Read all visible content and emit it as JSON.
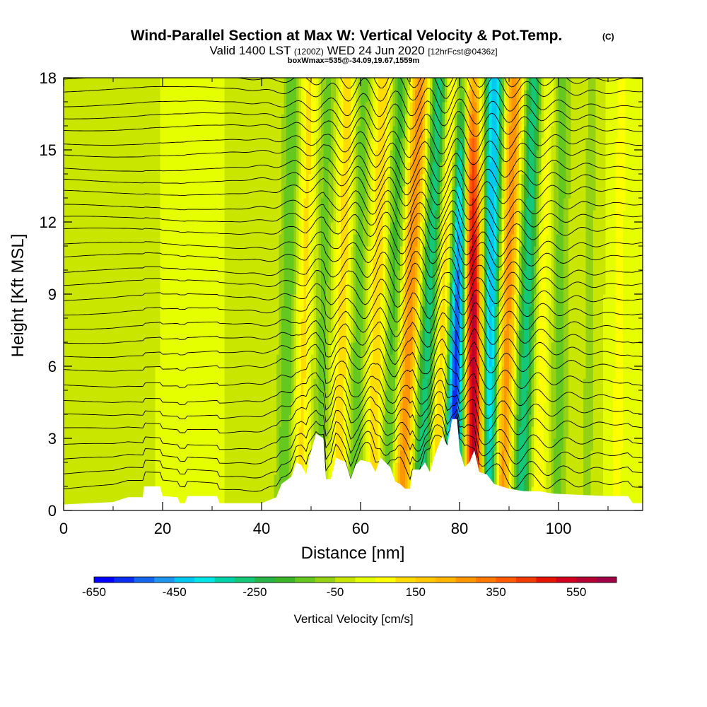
{
  "chart_data": {
    "type": "heatmap",
    "title": "Wind-Parallel Section at Max W: Vertical Velocity & Pot.Temp.",
    "title_mark": "(C)",
    "subtitle": {
      "valid_prefix": "Valid 1400 LST",
      "utc": "(1200Z)",
      "date": "WED 24 Jun 2020",
      "forecast": "[12hrFcst@0436z]"
    },
    "box_info": "boxWmax=535@-34.09,19.67,1559m",
    "xlabel": "Distance [nm]",
    "ylabel": "Height [Kft MSL]",
    "xlim": [
      0,
      117
    ],
    "ylim": [
      0,
      18
    ],
    "x_ticks": [
      "0",
      "20",
      "40",
      "60",
      "80",
      "100"
    ],
    "x_tick_values": [
      0,
      20,
      40,
      60,
      80,
      100
    ],
    "y_ticks": [
      "0",
      "3",
      "6",
      "9",
      "12",
      "15",
      "18"
    ],
    "y_tick_values": [
      0,
      3,
      6,
      9,
      12,
      15,
      18
    ],
    "colorbar": {
      "label": "Vertical Velocity [cm/s]",
      "range": [
        -650,
        650
      ],
      "tick_labels": [
        "-650",
        "-450",
        "-250",
        "-50",
        "150",
        "350",
        "550"
      ],
      "tick_values": [
        -650,
        -450,
        -250,
        -50,
        150,
        350,
        550
      ],
      "colors": [
        "#0000ff",
        "#0a2ef0",
        "#1466ee",
        "#1e96f0",
        "#00c8f0",
        "#00e6e6",
        "#00d2aa",
        "#14c878",
        "#28b446",
        "#3cb428",
        "#64c81e",
        "#96d214",
        "#c8e600",
        "#e6ff00",
        "#ffff00",
        "#ffdc00",
        "#ffc800",
        "#ffb400",
        "#ff9600",
        "#ff7800",
        "#ff5a00",
        "#f03c00",
        "#e61400",
        "#d2001e",
        "#b40032",
        "#a00046"
      ]
    },
    "wave_bands": [
      {
        "x": 45,
        "w": -150,
        "tilt": 0.1
      },
      {
        "x": 48,
        "w": 120,
        "tilt": 0.12
      },
      {
        "x": 52,
        "w": -120,
        "tilt": 0.1
      },
      {
        "x": 56,
        "w": 140,
        "tilt": 0.12
      },
      {
        "x": 59,
        "w": -140,
        "tilt": 0.1
      },
      {
        "x": 63,
        "w": 150,
        "tilt": 0.12
      },
      {
        "x": 66,
        "w": -180,
        "tilt": 0.15
      },
      {
        "x": 69,
        "w": 300,
        "tilt": 0.22
      },
      {
        "x": 73,
        "w": -300,
        "tilt": 0.22
      },
      {
        "x": 76,
        "w": 220,
        "tilt": 0.2
      },
      {
        "x": 79,
        "w": -620,
        "tilt": 0.15
      },
      {
        "x": 83,
        "w": 620,
        "tilt": -0.08
      },
      {
        "x": 86,
        "w": -450,
        "tilt": 0.08
      },
      {
        "x": 89,
        "w": 300,
        "tilt": 0.15
      },
      {
        "x": 93,
        "w": -300,
        "tilt": 0.15
      },
      {
        "x": 96,
        "w": 100,
        "tilt": 0.1
      },
      {
        "x": 100,
        "w": -120,
        "tilt": 0.05
      },
      {
        "x": 106,
        "w": -60,
        "tilt": 0.05
      },
      {
        "x": 112,
        "w": 60,
        "tilt": 0.05
      }
    ],
    "terrain_profile": [
      [
        0,
        0.25
      ],
      [
        10,
        0.35
      ],
      [
        13,
        0.55
      ],
      [
        16,
        0.55
      ],
      [
        16.2,
        1.0
      ],
      [
        19.5,
        1.0
      ],
      [
        20,
        0.6
      ],
      [
        23,
        0.55
      ],
      [
        23.5,
        0.3
      ],
      [
        24.5,
        0.3
      ],
      [
        25,
        0.6
      ],
      [
        31,
        0.6
      ],
      [
        31.5,
        0.3
      ],
      [
        40,
        0.3
      ],
      [
        43,
        0.55
      ],
      [
        44,
        1.1
      ],
      [
        46,
        1.4
      ],
      [
        47,
        2.0
      ],
      [
        48,
        1.9
      ],
      [
        49,
        1.5
      ],
      [
        49.5,
        2.1
      ],
      [
        51,
        3.2
      ],
      [
        52.5,
        3.0
      ],
      [
        53,
        1.3
      ],
      [
        54,
        1.3
      ],
      [
        55,
        2.2
      ],
      [
        56,
        2.1
      ],
      [
        57,
        2.0
      ],
      [
        58,
        1.3
      ],
      [
        59,
        1.9
      ],
      [
        60,
        2.1
      ],
      [
        62,
        2.0
      ],
      [
        63,
        1.6
      ],
      [
        64,
        2.2
      ],
      [
        65,
        2.0
      ],
      [
        66,
        1.8
      ],
      [
        67,
        1.2
      ],
      [
        68,
        1.1
      ],
      [
        69,
        0.9
      ],
      [
        70,
        0.9
      ],
      [
        70.5,
        1.7
      ],
      [
        72,
        1.7
      ],
      [
        73,
        2.0
      ],
      [
        74,
        1.6
      ],
      [
        75,
        2.3
      ],
      [
        76.5,
        3.1
      ],
      [
        77.5,
        2.7
      ],
      [
        78.5,
        3.8
      ],
      [
        79.5,
        3.8
      ],
      [
        80,
        2.5
      ],
      [
        81,
        1.8
      ],
      [
        82,
        2.0
      ],
      [
        83,
        2.5
      ],
      [
        84,
        1.6
      ],
      [
        85.5,
        1.5
      ],
      [
        87,
        1.1
      ],
      [
        90,
        0.9
      ],
      [
        93,
        0.8
      ],
      [
        96,
        0.8
      ],
      [
        99,
        0.7
      ],
      [
        104,
        0.65
      ],
      [
        110,
        0.6
      ],
      [
        114,
        0.6
      ],
      [
        115,
        0.3
      ],
      [
        117,
        0.3
      ]
    ],
    "isentropes": {
      "count": 32,
      "base_heights": [
        0.7,
        1.3,
        1.9,
        2.5,
        3.2,
        3.8,
        4.4,
        5.1,
        5.8,
        6.4,
        7.0,
        7.6,
        8.2,
        8.8,
        9.4,
        9.9,
        10.5,
        11.0,
        11.6,
        12.1,
        12.6,
        13.2,
        13.7,
        14.2,
        14.8,
        15.3,
        15.9,
        16.4,
        16.9,
        17.5,
        18.0,
        18.5
      ]
    }
  }
}
